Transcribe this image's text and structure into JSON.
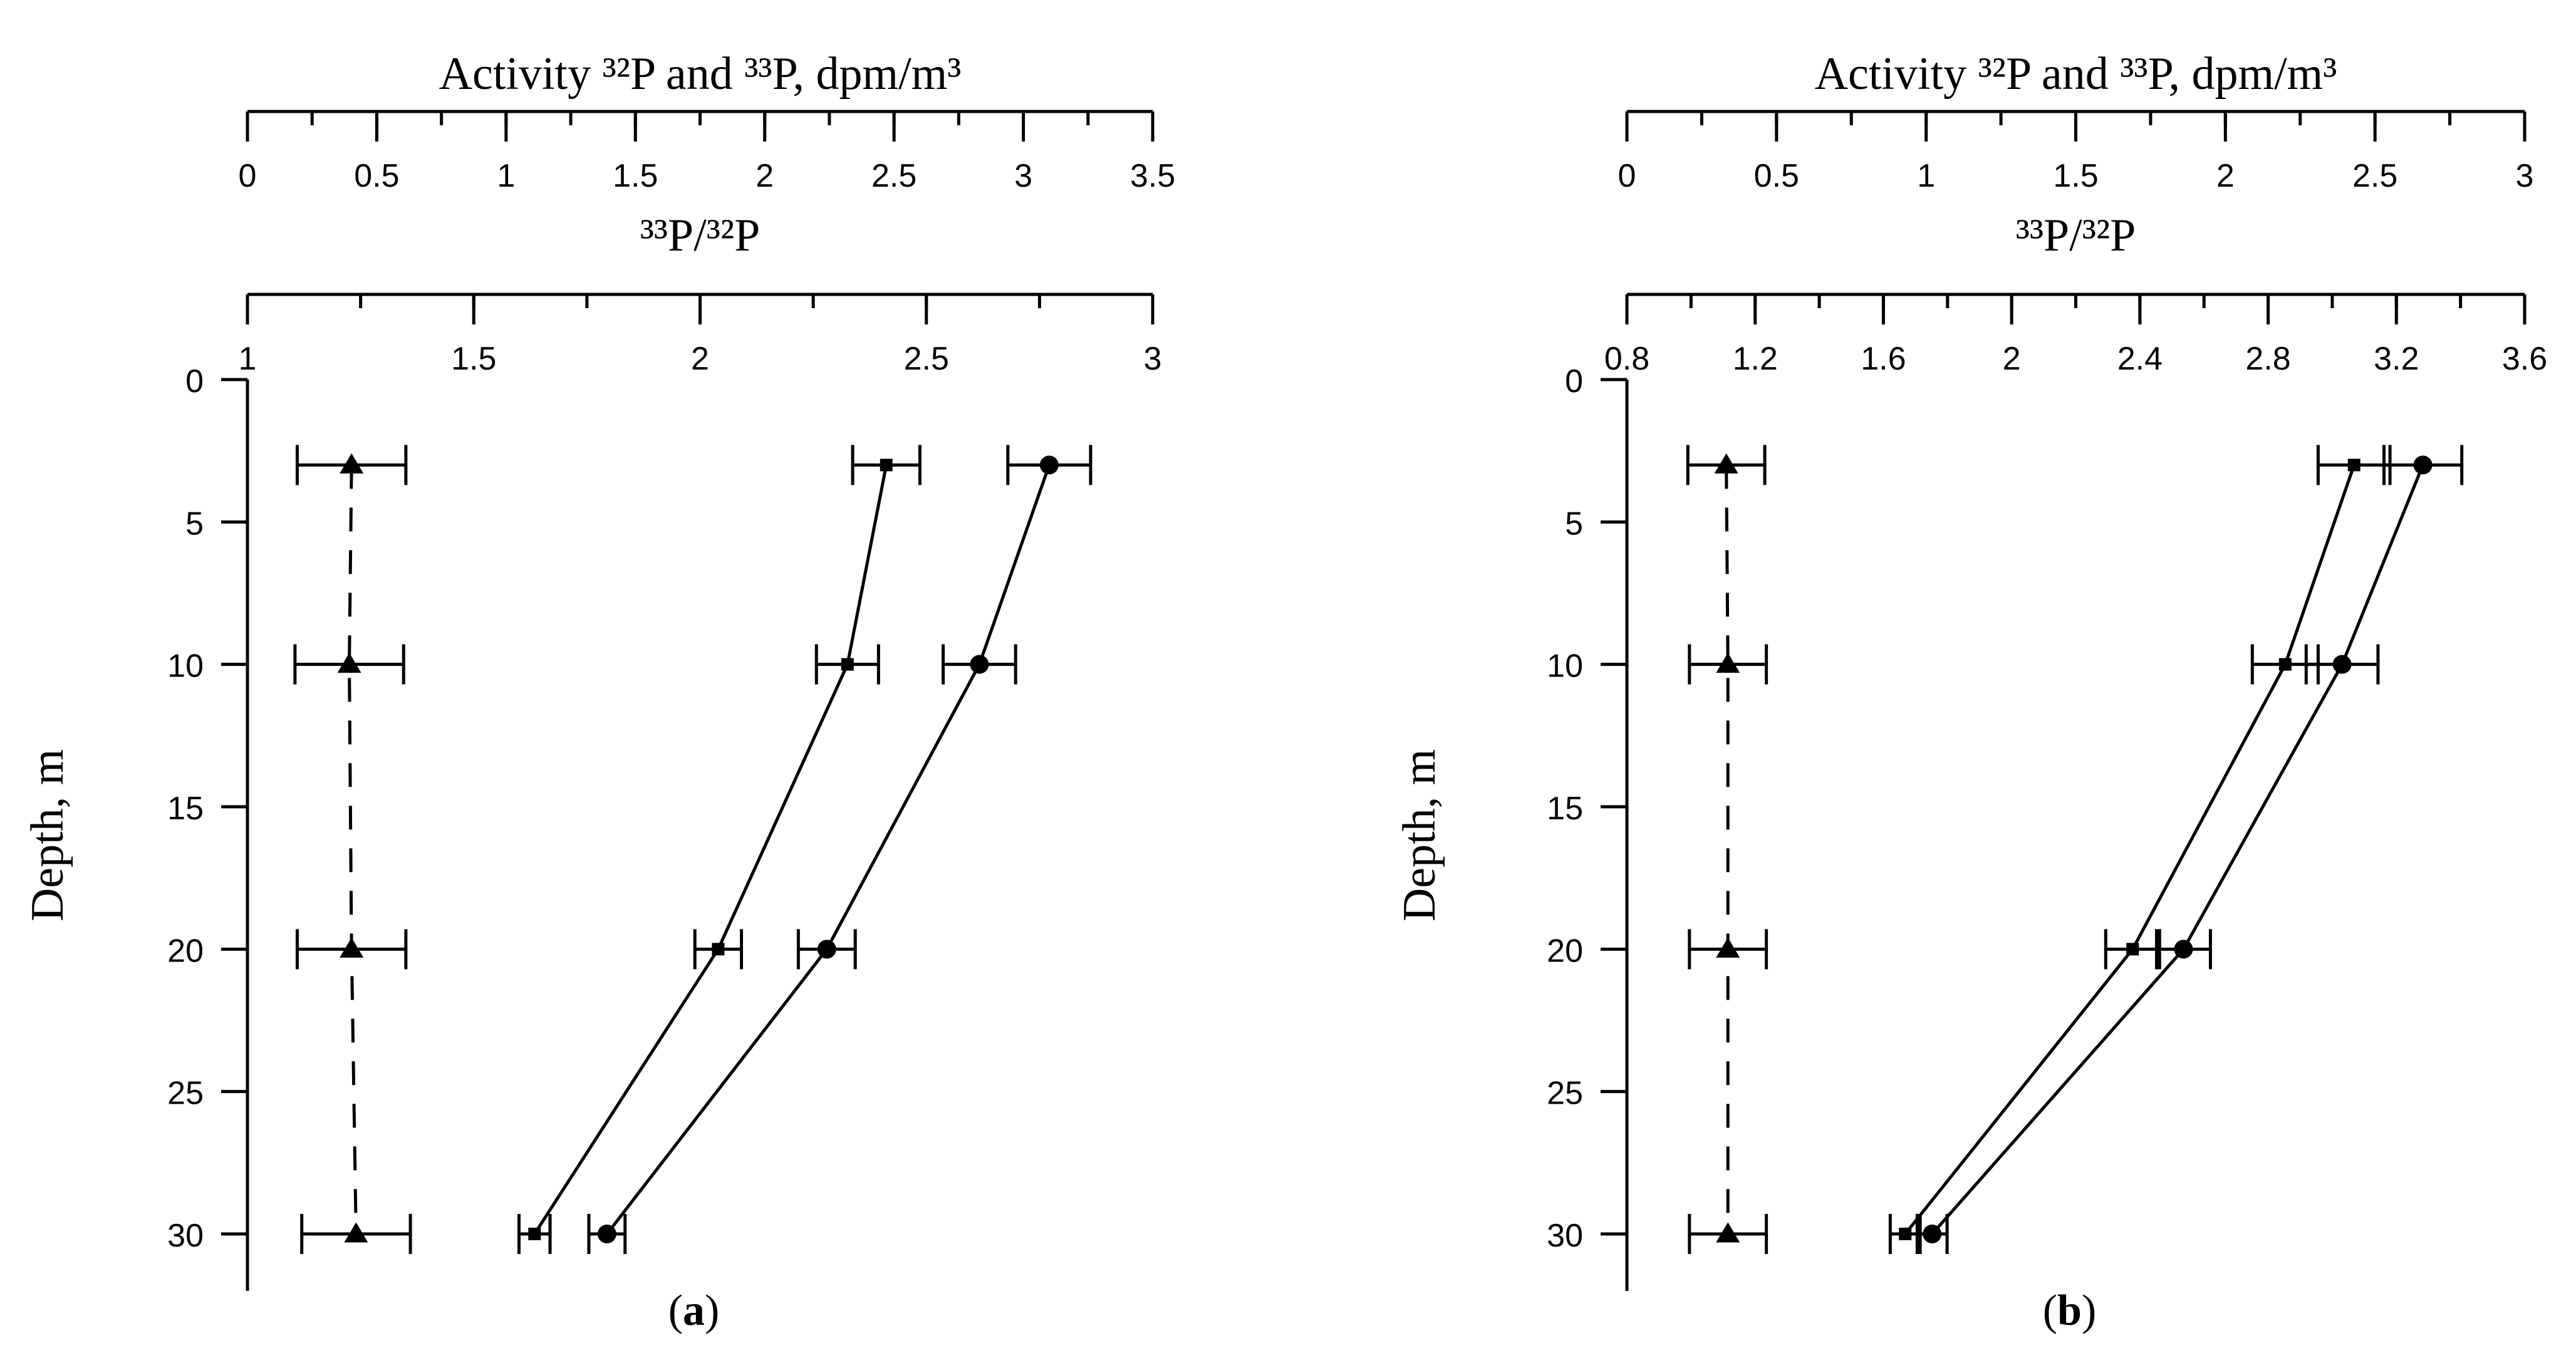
{
  "chart_data": [
    {
      "type": "scatter",
      "panel_label": "a",
      "top_axis": {
        "title": "Activity ³²P and ³³P, dpm/m³",
        "range": [
          0,
          3.5
        ],
        "ticks": [
          "0",
          "0.5",
          "1",
          "1.5",
          "2",
          "2.5",
          "3",
          "3.5"
        ],
        "minor_step": 0.25
      },
      "ratio_axis": {
        "title": "³³P/³²P",
        "range": [
          1,
          3
        ],
        "ticks": [
          "1",
          "1.5",
          "2",
          "2.5",
          "3"
        ],
        "minor_step": 0.25
      },
      "y_axis": {
        "title": "Depth, m",
        "range": [
          0,
          32
        ],
        "ticks": [
          "0",
          "5",
          "10",
          "15",
          "20",
          "25",
          "30"
        ],
        "inverted": true
      },
      "series": [
        {
          "marker": "square",
          "line": "solid",
          "axis": "activity",
          "points": [
            {
              "depth": 3,
              "x": 2.47,
              "err": 0.13
            },
            {
              "depth": 10,
              "x": 2.32,
              "err": 0.12
            },
            {
              "depth": 20,
              "x": 1.82,
              "err": 0.09
            },
            {
              "depth": 30,
              "x": 1.11,
              "err": 0.06
            }
          ]
        },
        {
          "marker": "circle",
          "line": "solid",
          "axis": "activity",
          "points": [
            {
              "depth": 3,
              "x": 3.1,
              "err": 0.16
            },
            {
              "depth": 10,
              "x": 2.83,
              "err": 0.14
            },
            {
              "depth": 20,
              "x": 2.24,
              "err": 0.11
            },
            {
              "depth": 30,
              "x": 1.39,
              "err": 0.07
            }
          ]
        },
        {
          "marker": "triangle",
          "line": "dashed",
          "axis": "ratio",
          "points": [
            {
              "depth": 3,
              "x": 1.23,
              "err": 0.12
            },
            {
              "depth": 10,
              "x": 1.225,
              "err": 0.12
            },
            {
              "depth": 20,
              "x": 1.23,
              "err": 0.12
            },
            {
              "depth": 30,
              "x": 1.24,
              "err": 0.12
            }
          ]
        }
      ]
    },
    {
      "type": "scatter",
      "panel_label": "b",
      "top_axis": {
        "title": "Activity ³²P and ³³P, dpm/m³",
        "range": [
          0,
          3
        ],
        "ticks": [
          "0",
          "0.5",
          "1",
          "1.5",
          "2",
          "2.5",
          "3"
        ],
        "minor_step": 0.25
      },
      "ratio_axis": {
        "title": "³³P/³²P",
        "range": [
          0.8,
          3.6
        ],
        "ticks": [
          "0.8",
          "1.2",
          "1.6",
          "2",
          "2.4",
          "2.8",
          "3.2",
          "3.6"
        ],
        "minor_step": 0.2
      },
      "y_axis": {
        "title": "Depth, m",
        "range": [
          0,
          32
        ],
        "ticks": [
          "0",
          "5",
          "10",
          "15",
          "20",
          "25",
          "30"
        ],
        "inverted": true
      },
      "series": [
        {
          "marker": "square",
          "line": "solid",
          "axis": "activity",
          "points": [
            {
              "depth": 3,
              "x": 2.43,
              "err": 0.12
            },
            {
              "depth": 10,
              "x": 2.2,
              "err": 0.11
            },
            {
              "depth": 20,
              "x": 1.69,
              "err": 0.09
            },
            {
              "depth": 30,
              "x": 0.93,
              "err": 0.05
            }
          ]
        },
        {
          "marker": "circle",
          "line": "solid",
          "axis": "activity",
          "points": [
            {
              "depth": 3,
              "x": 2.66,
              "err": 0.13
            },
            {
              "depth": 10,
              "x": 2.39,
              "err": 0.12
            },
            {
              "depth": 20,
              "x": 1.86,
              "err": 0.09
            },
            {
              "depth": 30,
              "x": 1.02,
              "err": 0.05
            }
          ]
        },
        {
          "marker": "triangle",
          "line": "dashed",
          "axis": "ratio",
          "points": [
            {
              "depth": 3,
              "x": 1.11,
              "err": 0.12
            },
            {
              "depth": 10,
              "x": 1.115,
              "err": 0.12
            },
            {
              "depth": 20,
              "x": 1.115,
              "err": 0.12
            },
            {
              "depth": 30,
              "x": 1.115,
              "err": 0.12
            }
          ]
        }
      ]
    }
  ]
}
